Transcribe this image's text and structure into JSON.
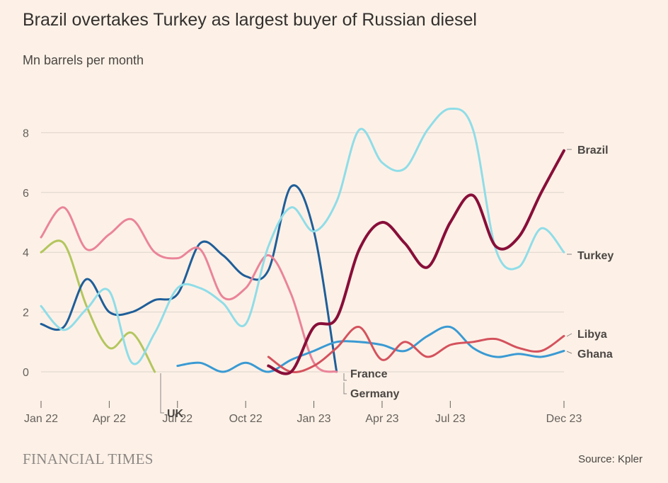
{
  "header": {
    "title": "Brazil overtakes Turkey as largest buyer of Russian diesel",
    "subtitle": "Mn barrels per month"
  },
  "footer": {
    "publisher": "FINANCIAL TIMES",
    "source": "Source: Kpler"
  },
  "chart_data": {
    "type": "line",
    "title": "Brazil overtakes Turkey as largest buyer of Russian diesel",
    "ylabel": "Mn barrels per month",
    "xlabel": "",
    "ylim": [
      -1,
      9
    ],
    "yticks": [
      0,
      2,
      4,
      6,
      8
    ],
    "grid": true,
    "legend": "direct labels at line ends",
    "x": [
      "2022-01",
      "2022-02",
      "2022-03",
      "2022-04",
      "2022-05",
      "2022-06",
      "2022-07",
      "2022-08",
      "2022-09",
      "2022-10",
      "2022-11",
      "2022-12",
      "2023-01",
      "2023-02",
      "2023-03",
      "2023-04",
      "2023-05",
      "2023-06",
      "2023-07",
      "2023-08",
      "2023-09",
      "2023-10",
      "2023-11",
      "2023-12"
    ],
    "xtick_labels": [
      {
        "x": "2022-01",
        "label": "Jan 22"
      },
      {
        "x": "2022-04",
        "label": "Apr 22"
      },
      {
        "x": "2022-07",
        "label": "Jul 22"
      },
      {
        "x": "2022-10",
        "label": "Oct 22"
      },
      {
        "x": "2023-01",
        "label": "Jan 23"
      },
      {
        "x": "2023-04",
        "label": "Apr 23"
      },
      {
        "x": "2023-07",
        "label": "Jul 23"
      },
      {
        "x": "2023-12",
        "label": "Dec 23"
      }
    ],
    "series": [
      {
        "name": "UK",
        "color": "#b3c65e",
        "width": 3,
        "values": [
          4.0,
          4.3,
          2.2,
          0.8,
          1.3,
          0.0,
          null,
          null,
          null,
          null,
          null,
          null,
          null,
          null,
          null,
          null,
          null,
          null,
          null,
          null,
          null,
          null,
          null,
          null
        ]
      },
      {
        "name": "France",
        "color": "#1f5e99",
        "width": 3,
        "values": [
          1.6,
          1.5,
          3.1,
          2.0,
          2.0,
          2.4,
          2.6,
          4.3,
          3.9,
          3.2,
          3.4,
          6.2,
          4.7,
          0.0,
          null,
          null,
          null,
          null,
          null,
          null,
          null,
          null,
          null,
          null
        ]
      },
      {
        "name": "Germany",
        "color": "#ea8499",
        "width": 3,
        "values": [
          4.5,
          5.5,
          4.1,
          4.6,
          5.1,
          4.0,
          3.8,
          4.1,
          2.5,
          2.8,
          3.9,
          2.6,
          0.3,
          0.0,
          null,
          null,
          null,
          null,
          null,
          null,
          null,
          null,
          null,
          null
        ]
      },
      {
        "name": "Turkey",
        "color": "#8fdde8",
        "width": 3,
        "values": [
          2.2,
          1.4,
          2.1,
          2.7,
          0.3,
          1.3,
          2.8,
          2.8,
          2.3,
          1.6,
          4.2,
          5.5,
          4.7,
          5.7,
          8.1,
          7.0,
          6.8,
          8.1,
          8.8,
          8.1,
          4.1,
          3.5,
          4.8,
          4.0
        ]
      },
      {
        "name": "Ghana",
        "color": "#3a9ad3",
        "width": 3,
        "values": [
          null,
          null,
          null,
          null,
          null,
          null,
          0.2,
          0.3,
          0.0,
          0.3,
          0.0,
          0.4,
          0.7,
          1.0,
          1.0,
          0.9,
          0.7,
          1.2,
          1.5,
          0.8,
          0.5,
          0.6,
          0.5,
          0.7
        ]
      },
      {
        "name": "Libya",
        "color": "#d4525d",
        "width": 3,
        "values": [
          null,
          null,
          null,
          null,
          null,
          null,
          null,
          null,
          null,
          null,
          0.5,
          0.0,
          0.2,
          0.8,
          1.5,
          0.4,
          1.0,
          0.5,
          0.9,
          1.0,
          1.1,
          0.8,
          0.7,
          1.2
        ]
      },
      {
        "name": "Brazil",
        "color": "#880e39",
        "width": 4,
        "values": [
          null,
          null,
          null,
          null,
          null,
          null,
          null,
          null,
          null,
          null,
          0.2,
          0.0,
          1.5,
          1.8,
          4.1,
          5.0,
          4.3,
          3.5,
          5.0,
          5.9,
          4.2,
          4.5,
          6.0,
          7.4
        ]
      }
    ],
    "labels": [
      {
        "text": "Brazil",
        "series": "Brazil"
      },
      {
        "text": "Turkey",
        "series": "Turkey"
      },
      {
        "text": "Libya",
        "series": "Libya"
      },
      {
        "text": "Ghana",
        "series": "Ghana"
      },
      {
        "text": "France",
        "series": "France"
      },
      {
        "text": "Germany",
        "series": "Germany"
      },
      {
        "text": "UK",
        "series": "UK"
      }
    ]
  }
}
